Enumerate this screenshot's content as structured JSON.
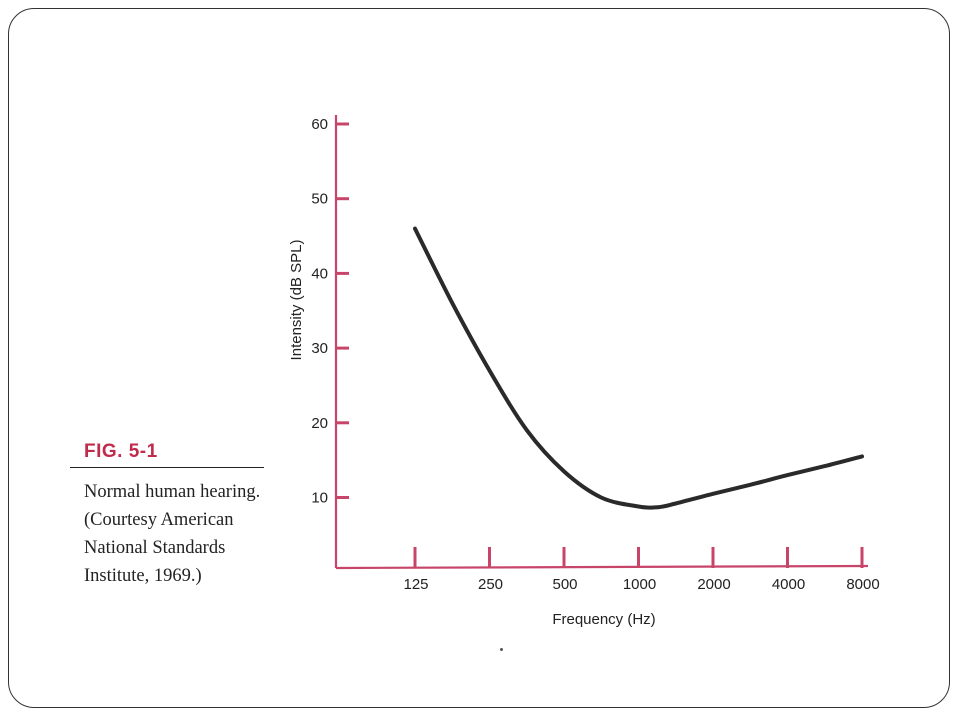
{
  "colors": {
    "axis": "#c8456a",
    "curve": "#2a2a2a",
    "caption_heading": "#c02a4b",
    "text": "#222222"
  },
  "figure": {
    "number": "FIG. 5-1",
    "caption": "Normal human hearing. (Courtesy American National Standards Institute, 1969.)"
  },
  "chart_data": {
    "type": "line",
    "title": "",
    "xlabel": "Frequency (Hz)",
    "ylabel": "Intensity (dB SPL)",
    "x_scale": "log2-categorical",
    "x_ticks": [
      "125",
      "250",
      "500",
      "1000",
      "2000",
      "4000",
      "8000"
    ],
    "y_ticks": [
      "10",
      "20",
      "30",
      "40",
      "50",
      "60"
    ],
    "ylim": [
      3,
      60
    ],
    "grid": false,
    "legend": "none",
    "series": [
      {
        "x": [
          125,
          177,
          250,
          354,
          500,
          707,
          1000,
          1200,
          1414,
          2000,
          2828,
          4000,
          5657,
          8000
        ],
        "y": [
          46,
          36,
          27,
          19,
          13.5,
          10,
          8.8,
          8.7,
          9.2,
          10.5,
          11.7,
          13.0,
          14.2,
          15.5
        ]
      }
    ]
  }
}
